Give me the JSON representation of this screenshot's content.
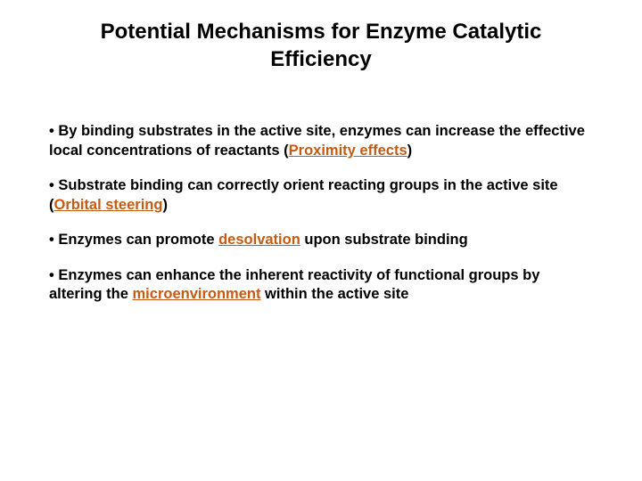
{
  "title": "Potential Mechanisms for Enzyme Catalytic Efficiency",
  "bullets": [
    {
      "pre": "• By binding substrates in the active site, enzymes can increase the effective local concentrations of reactants (",
      "highlight": "Proximity effects",
      "post": ")"
    },
    {
      "pre": "• Substrate binding can correctly orient reacting groups in the active site (",
      "highlight": "Orbital steering",
      "post": ")"
    },
    {
      "pre": "• Enzymes can promote ",
      "highlight": "desolvation",
      "post": " upon substrate binding"
    },
    {
      "pre": "• Enzymes can enhance the inherent reactivity of functional groups by altering the ",
      "highlight": "microenvironment",
      "post": " within the active site"
    }
  ],
  "colors": {
    "highlight": "#c55a11",
    "text": "#000000",
    "background": "#ffffff"
  }
}
